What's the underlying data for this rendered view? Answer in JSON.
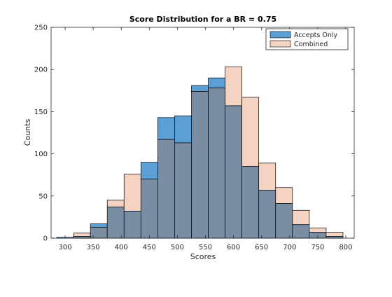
{
  "chart_data": {
    "type": "bar",
    "subtype": "overlaid-histogram",
    "title": "Score Distribution for a BR = 0.75",
    "xlabel": "Scores",
    "ylabel": "Counts",
    "xlim": [
      275,
      815
    ],
    "ylim": [
      0,
      250
    ],
    "xticks": [
      300,
      350,
      400,
      450,
      500,
      550,
      600,
      650,
      700,
      750,
      800
    ],
    "yticks": [
      0,
      50,
      100,
      150,
      200,
      250
    ],
    "grid": false,
    "legend_position": "top-right",
    "bin_edges": [
      285,
      315,
      345,
      375,
      405,
      435,
      465,
      495,
      525,
      555,
      585,
      615,
      645,
      675,
      705,
      735,
      765,
      795
    ],
    "series": [
      {
        "name": "Accepts Only",
        "color": "#5b9fd4",
        "values": [
          1,
          2,
          17,
          37,
          32,
          90,
          143,
          145,
          181,
          190,
          157,
          85,
          57,
          41,
          16,
          7,
          2
        ]
      },
      {
        "name": "Combined",
        "color": "#f5d3c3",
        "values": [
          0,
          6,
          13,
          45,
          76,
          70,
          117,
          113,
          174,
          178,
          203,
          167,
          89,
          60,
          33,
          12,
          7
        ]
      }
    ],
    "overlap_color": "#7a8da3"
  }
}
